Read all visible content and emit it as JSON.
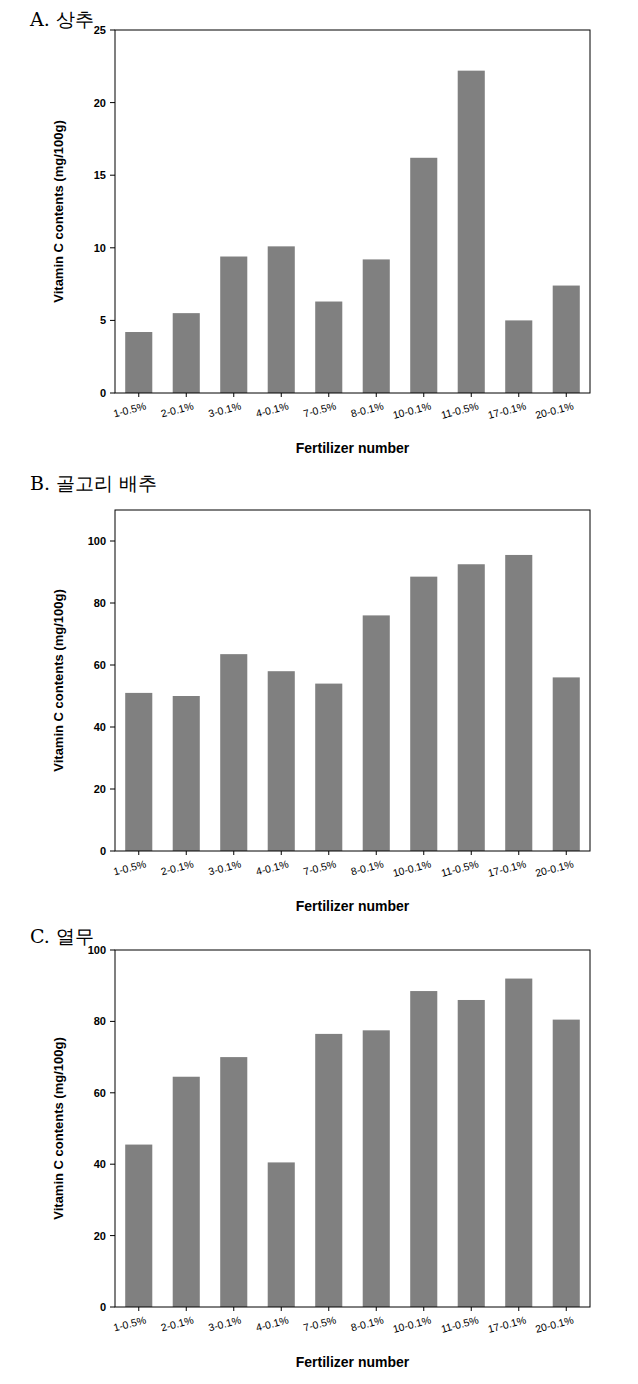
{
  "chart_data": [
    {
      "type": "bar",
      "title": "A. 상추",
      "x_label": "Fertilizer number",
      "y_label": "Vitamin C contents (mg/100g)",
      "categories": [
        "1-0.5%",
        "2-0.1%",
        "3-0.1%",
        "4-0.1%",
        "7-0.5%",
        "8-0.1%",
        "10-0.1%",
        "11-0.5%",
        "17-0.1%",
        "20-0.1%"
      ],
      "values": [
        4.2,
        5.5,
        9.4,
        10.1,
        6.3,
        9.2,
        16.2,
        22.2,
        5.0,
        7.4
      ],
      "color": "#808080",
      "ylim": [
        0,
        25
      ],
      "yticks": [
        0,
        5,
        10,
        15,
        20,
        25
      ],
      "grid": false
    },
    {
      "type": "bar",
      "title": "B. 골고리 배추",
      "x_label": "Fertilizer number",
      "y_label": "Vitamin C contents (mg/100g)",
      "categories": [
        "1-0.5%",
        "2-0.1%",
        "3-0.1%",
        "4-0.1%",
        "7-0.5%",
        "8-0.1%",
        "10-0.1%",
        "11-0.5%",
        "17-0.1%",
        "20-0.1%"
      ],
      "values": [
        51,
        50,
        63.5,
        58,
        54,
        76,
        88.5,
        92.5,
        95.5,
        56
      ],
      "color": "#808080",
      "ylim": [
        0,
        110
      ],
      "yticks": [
        0,
        20,
        40,
        60,
        80,
        100
      ],
      "grid": false
    },
    {
      "type": "bar",
      "title": "C. 열무",
      "x_label": "Fertilizer number",
      "y_label": "Vitamin C contents (mg/100g)",
      "categories": [
        "1-0.5%",
        "2-0.1%",
        "3-0.1%",
        "4-0.1%",
        "7-0.5%",
        "8-0.1%",
        "10-0.1%",
        "11-0.5%",
        "17-0.1%",
        "20-0.1%"
      ],
      "values": [
        45.5,
        64.5,
        70,
        40.5,
        76.5,
        77.5,
        88.5,
        86,
        92,
        80.5
      ],
      "color": "#808080",
      "ylim": [
        0,
        100
      ],
      "yticks": [
        0,
        20,
        40,
        60,
        80,
        100
      ],
      "grid": false
    }
  ]
}
